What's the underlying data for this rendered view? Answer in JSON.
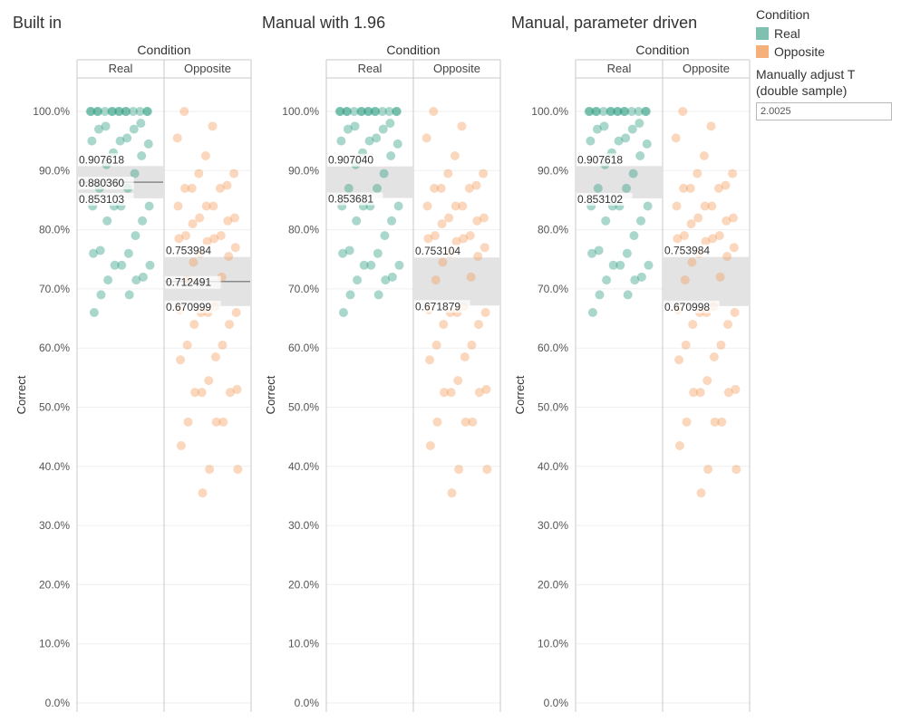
{
  "legend": {
    "title": "Condition",
    "items": [
      {
        "label": "Real",
        "color": "#80c0b0"
      },
      {
        "label": "Opposite",
        "color": "#f5b07c"
      }
    ]
  },
  "parameter": {
    "title": "Manually adjust T\n(double sample)",
    "value": "2.0025"
  },
  "chart_data": [
    {
      "type": "scatter",
      "title": "Built in",
      "column_header": "Condition",
      "categories": [
        "Real",
        "Opposite"
      ],
      "ylabel": "Correct",
      "ylim": [
        0,
        1
      ],
      "yticks": [
        "0.0%",
        "10.0%",
        "20.0%",
        "30.0%",
        "40.0%",
        "50.0%",
        "60.0%",
        "70.0%",
        "80.0%",
        "90.0%",
        "100.0%"
      ],
      "grid": true,
      "series": [
        {
          "name": "Real",
          "color": "#2b9a80",
          "values": [
            1,
            1,
            1,
            1,
            1,
            1,
            1,
            1,
            1,
            1,
            1,
            1,
            1,
            1,
            1,
            0.98,
            0.975,
            0.97,
            0.97,
            0.955,
            0.95,
            0.95,
            0.945,
            0.93,
            0.925,
            0.91,
            0.895,
            0.87,
            0.87,
            0.84,
            0.84,
            0.84,
            0.84,
            0.815,
            0.815,
            0.79,
            0.765,
            0.76,
            0.76,
            0.74,
            0.74,
            0.74,
            0.72,
            0.715,
            0.715,
            0.69,
            0.69,
            0.66
          ],
          "band": {
            "low": 0.853103,
            "mean": 0.88036,
            "high": 0.907618,
            "labels": [
              "0.907618",
              "0.880360",
              "0.853103"
            ]
          }
        },
        {
          "name": "Opposite",
          "color": "#f39c5a",
          "values": [
            1,
            0.975,
            0.955,
            0.925,
            0.895,
            0.895,
            0.875,
            0.87,
            0.87,
            0.87,
            0.84,
            0.84,
            0.84,
            0.82,
            0.82,
            0.815,
            0.81,
            0.79,
            0.79,
            0.785,
            0.785,
            0.78,
            0.77,
            0.76,
            0.755,
            0.745,
            0.72,
            0.715,
            0.67,
            0.665,
            0.66,
            0.66,
            0.66,
            0.64,
            0.64,
            0.605,
            0.605,
            0.585,
            0.58,
            0.545,
            0.53,
            0.525,
            0.525,
            0.525,
            0.475,
            0.475,
            0.475,
            0.435,
            0.395,
            0.395,
            0.355
          ],
          "band": {
            "low": 0.670999,
            "mean": 0.712491,
            "high": 0.753984,
            "labels": [
              "0.753984",
              "0.712491",
              "0.670999"
            ]
          }
        }
      ]
    },
    {
      "type": "scatter",
      "title": "Manual with 1.96",
      "column_header": "Condition",
      "categories": [
        "Real",
        "Opposite"
      ],
      "ylabel": "Correct",
      "ylim": [
        0,
        1
      ],
      "yticks": [
        "0.0%",
        "10.0%",
        "20.0%",
        "30.0%",
        "40.0%",
        "50.0%",
        "60.0%",
        "70.0%",
        "80.0%",
        "90.0%",
        "100.0%"
      ],
      "grid": true,
      "series": [
        {
          "name": "Real",
          "color": "#2b9a80",
          "values": [
            1,
            1,
            1,
            1,
            1,
            1,
            1,
            1,
            1,
            1,
            1,
            1,
            1,
            1,
            1,
            0.98,
            0.975,
            0.97,
            0.97,
            0.955,
            0.95,
            0.95,
            0.945,
            0.93,
            0.925,
            0.91,
            0.895,
            0.87,
            0.87,
            0.84,
            0.84,
            0.84,
            0.84,
            0.815,
            0.815,
            0.79,
            0.765,
            0.76,
            0.76,
            0.74,
            0.74,
            0.74,
            0.72,
            0.715,
            0.715,
            0.69,
            0.69,
            0.66
          ],
          "band": {
            "low": 0.853681,
            "high": 0.90704,
            "labels": [
              "0.907040",
              "0.853681"
            ]
          }
        },
        {
          "name": "Opposite",
          "color": "#f39c5a",
          "values": [
            1,
            0.975,
            0.955,
            0.925,
            0.895,
            0.895,
            0.875,
            0.87,
            0.87,
            0.87,
            0.84,
            0.84,
            0.84,
            0.82,
            0.82,
            0.815,
            0.81,
            0.79,
            0.79,
            0.785,
            0.785,
            0.78,
            0.77,
            0.76,
            0.755,
            0.745,
            0.72,
            0.715,
            0.67,
            0.665,
            0.66,
            0.66,
            0.66,
            0.64,
            0.64,
            0.605,
            0.605,
            0.585,
            0.58,
            0.545,
            0.53,
            0.525,
            0.525,
            0.525,
            0.475,
            0.475,
            0.475,
            0.435,
            0.395,
            0.395,
            0.355
          ],
          "band": {
            "low": 0.671879,
            "high": 0.753104,
            "labels": [
              "0.753104",
              "0.671879"
            ]
          }
        }
      ]
    },
    {
      "type": "scatter",
      "title": "Manual, parameter driven",
      "column_header": "Condition",
      "categories": [
        "Real",
        "Opposite"
      ],
      "ylabel": "Correct",
      "ylim": [
        0,
        1
      ],
      "yticks": [
        "0.0%",
        "10.0%",
        "20.0%",
        "30.0%",
        "40.0%",
        "50.0%",
        "60.0%",
        "70.0%",
        "80.0%",
        "90.0%",
        "100.0%"
      ],
      "grid": true,
      "series": [
        {
          "name": "Real",
          "color": "#2b9a80",
          "values": [
            1,
            1,
            1,
            1,
            1,
            1,
            1,
            1,
            1,
            1,
            1,
            1,
            1,
            1,
            1,
            0.98,
            0.975,
            0.97,
            0.97,
            0.955,
            0.95,
            0.95,
            0.945,
            0.93,
            0.925,
            0.91,
            0.895,
            0.87,
            0.87,
            0.84,
            0.84,
            0.84,
            0.84,
            0.815,
            0.815,
            0.79,
            0.765,
            0.76,
            0.76,
            0.74,
            0.74,
            0.74,
            0.72,
            0.715,
            0.715,
            0.69,
            0.69,
            0.66
          ],
          "band": {
            "low": 0.853102,
            "high": 0.907618,
            "labels": [
              "0.907618",
              "0.853102"
            ]
          }
        },
        {
          "name": "Opposite",
          "color": "#f39c5a",
          "values": [
            1,
            0.975,
            0.955,
            0.925,
            0.895,
            0.895,
            0.875,
            0.87,
            0.87,
            0.87,
            0.84,
            0.84,
            0.84,
            0.82,
            0.82,
            0.815,
            0.81,
            0.79,
            0.79,
            0.785,
            0.785,
            0.78,
            0.77,
            0.76,
            0.755,
            0.745,
            0.72,
            0.715,
            0.67,
            0.665,
            0.66,
            0.66,
            0.66,
            0.64,
            0.64,
            0.605,
            0.605,
            0.585,
            0.58,
            0.545,
            0.53,
            0.525,
            0.525,
            0.525,
            0.475,
            0.475,
            0.475,
            0.435,
            0.395,
            0.395,
            0.355
          ],
          "band": {
            "low": 0.670998,
            "high": 0.753984,
            "labels": [
              "0.753984",
              "0.670998"
            ]
          }
        }
      ]
    }
  ]
}
